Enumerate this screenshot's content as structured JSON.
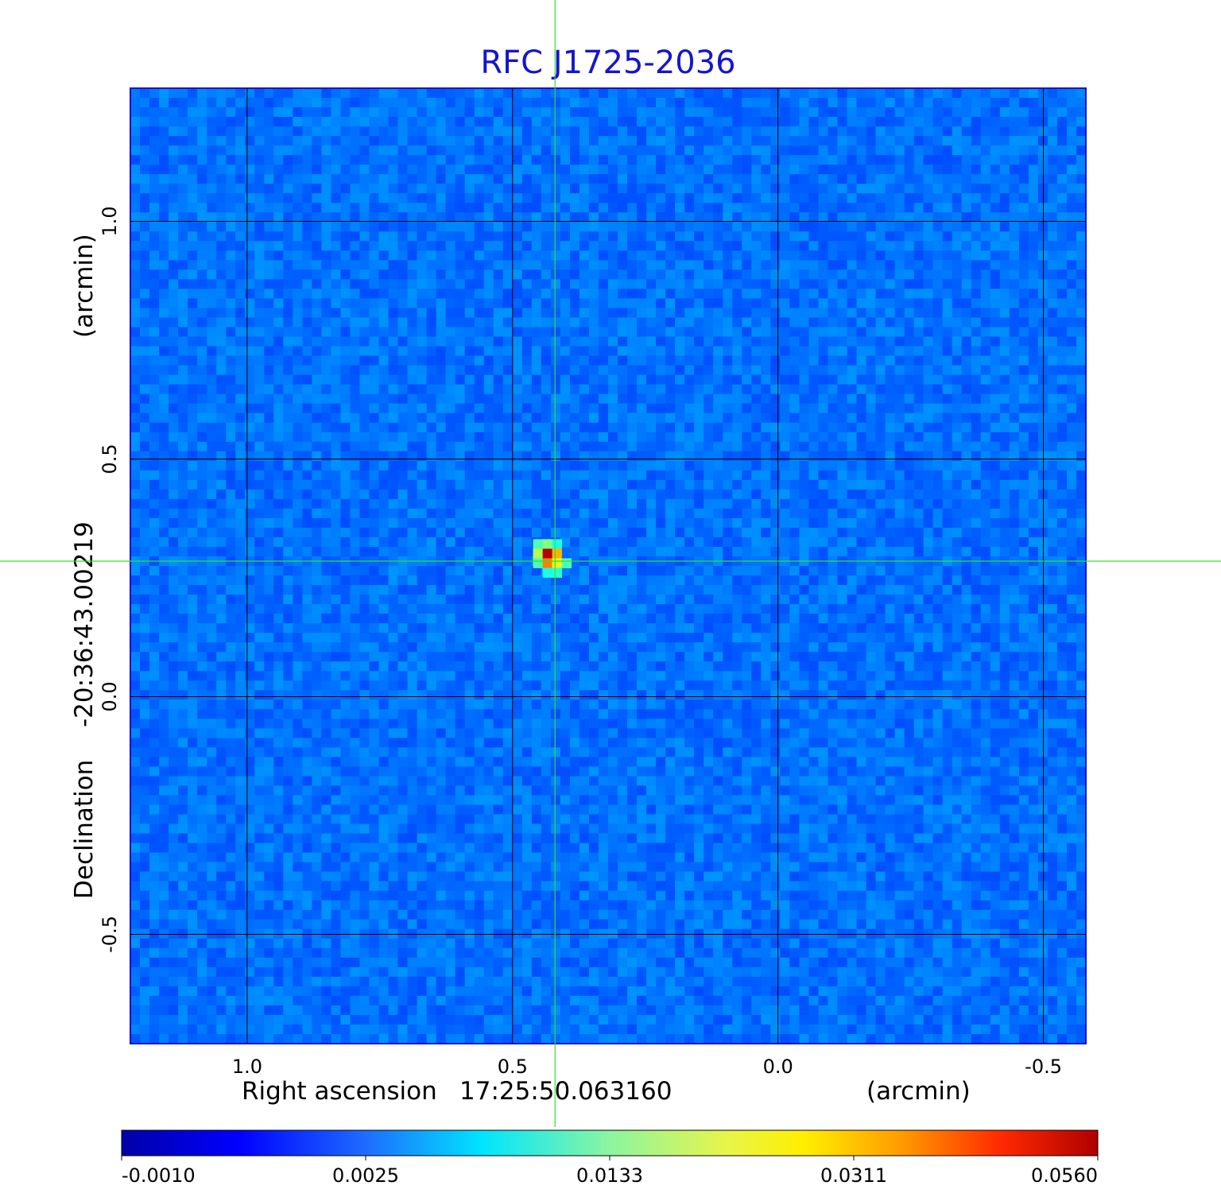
{
  "chart_data": {
    "type": "heatmap",
    "title": "RFC J1725-2036",
    "xlabel": {
      "prefix": "Right ascension",
      "center": "17:25:50.063160",
      "unit": "(arcmin)"
    },
    "ylabel": {
      "prefix": "Declination",
      "center": "-20:36:43.00219",
      "unit": "(arcmin)"
    },
    "xlim": [
      1.22,
      -0.58
    ],
    "ylim": [
      -0.73,
      1.28
    ],
    "x_ticks": [
      {
        "value": 1.0,
        "label": "1.0"
      },
      {
        "value": 0.5,
        "label": "0.5"
      },
      {
        "value": 0.0,
        "label": "0.0"
      },
      {
        "value": -0.5,
        "label": "-0.5"
      }
    ],
    "y_ticks": [
      {
        "value": 1.0,
        "label": "1.0"
      },
      {
        "value": 0.5,
        "label": "0.5"
      },
      {
        "value": 0.0,
        "label": "0.0"
      },
      {
        "value": -0.5,
        "label": "-0.5"
      }
    ],
    "grid": true,
    "grid_color": "#000000",
    "colormap": "jet",
    "colorbar": {
      "orientation": "horizontal",
      "placement": "bottom",
      "ticks": [
        "-0.0010",
        "0.0025",
        "0.0133",
        "0.0311",
        "0.0560"
      ]
    },
    "source": {
      "x": 0.42,
      "y": 0.285,
      "peak": 0.056,
      "note": "compact bright component"
    },
    "background_level": 0.0005,
    "crosshair": {
      "x": 0.42,
      "y": 0.285,
      "color": "#33dd33"
    }
  },
  "colors": {
    "title": "#1515cc",
    "text": "#000000",
    "crosshair": "#33dd33"
  }
}
